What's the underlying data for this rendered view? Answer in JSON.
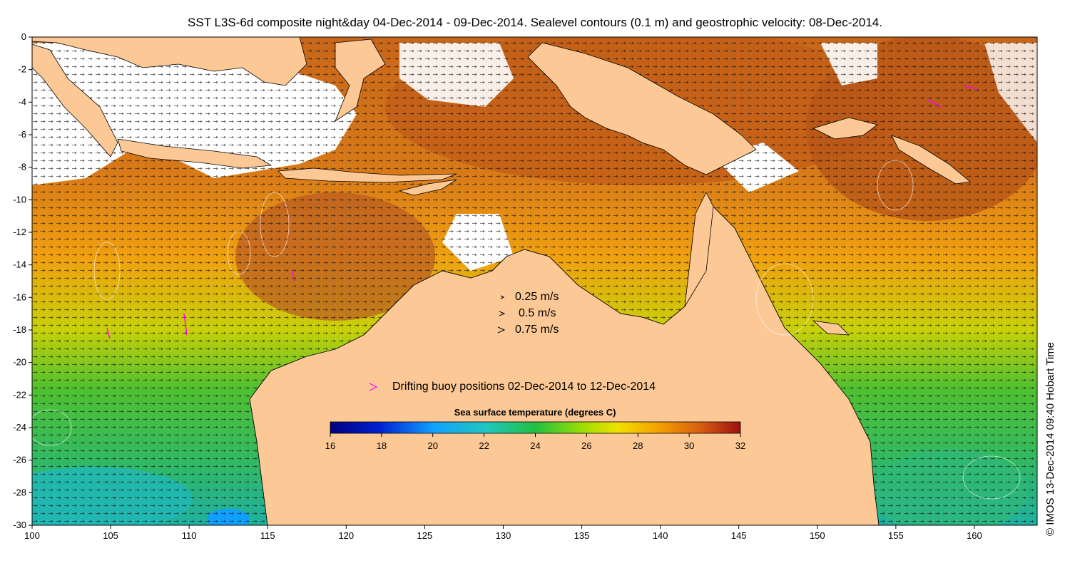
{
  "map": {
    "title": "SST L3S-6d composite night&day 04-Dec-2014 - 09-Dec-2014. Sealevel contours (0.1 m) and geostrophic velocity: 08-Dec-2014.",
    "region": "Northern Australia, Indonesia and Papua New Guinea",
    "x_ticks": [
      "100",
      "105",
      "110",
      "115",
      "120",
      "125",
      "130",
      "135",
      "140",
      "145",
      "150",
      "155",
      "160"
    ],
    "y_ticks": [
      "0",
      "-2",
      "-4",
      "-6",
      "-8",
      "-10",
      "-12",
      "-14",
      "-16",
      "-18",
      "-20",
      "-22",
      "-24",
      "-26",
      "-28",
      "-30"
    ],
    "lon_range": [
      100,
      164
    ],
    "lat_range": [
      -30,
      0
    ]
  },
  "velocity_legend": {
    "items": [
      "0.25 m/s",
      "0.5 m/s",
      "0.75 m/s"
    ]
  },
  "buoy_legend": {
    "label": "Drifting buoy positions 02-Dec-2014 to 12-Dec-2014",
    "color": "#ff00ff"
  },
  "colorbar": {
    "title": "Sea surface temperature (degrees C)",
    "ticks": [
      "16",
      "18",
      "20",
      "22",
      "24",
      "26",
      "28",
      "30",
      "32"
    ],
    "range": [
      16,
      32
    ]
  },
  "credit": "© IMOS 13-Dec-2014 09:40 Hobart Time",
  "colors": {
    "land": "#fcc896",
    "warm_ocean": "#d8761a",
    "hot_ocean": "#b8541a",
    "mid_ocean": "#f0a818",
    "cool_ocean": "#a8d010",
    "cold_ocean": "#38b850"
  }
}
